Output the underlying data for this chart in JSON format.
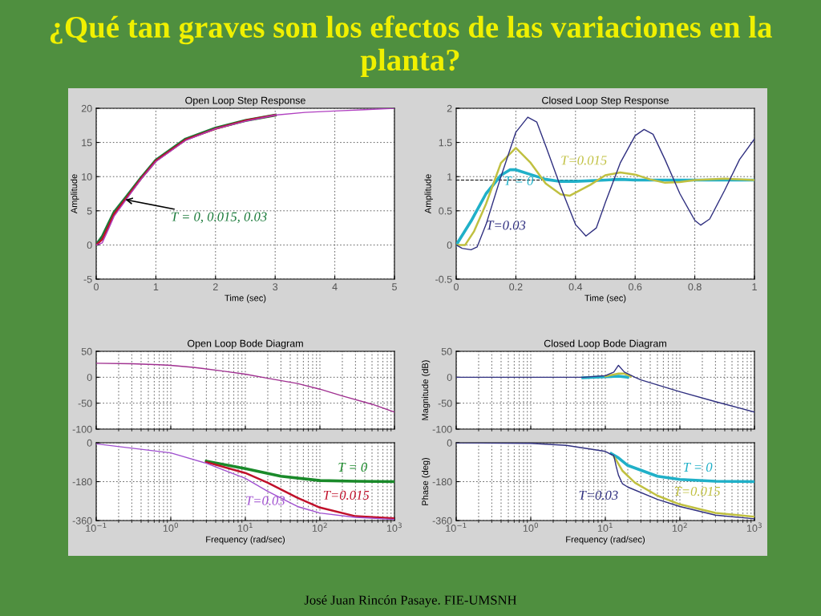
{
  "chart_data": [
    {
      "type": "line",
      "title": "Open Loop Step Response",
      "xlabel": "Time (sec)",
      "ylabel": "Amplitude",
      "xlim": [
        0,
        5
      ],
      "ylim": [
        -5,
        20
      ],
      "xticks": [
        0,
        1,
        2,
        3,
        4,
        5
      ],
      "yticks": [
        -5,
        0,
        5,
        10,
        15,
        20
      ],
      "grid": true,
      "line_style": "solid",
      "series": [
        {
          "color": "#1a7a3a",
          "x": [
            0,
            0.1,
            0.2,
            0.3,
            0.5,
            0.75,
            1,
            1.5,
            2,
            2.5,
            3
          ],
          "values": [
            0,
            1.2,
            3,
            4.8,
            7,
            9.8,
            12.4,
            15.5,
            17.1,
            18.2,
            19
          ]
        },
        {
          "color": "#c0102a",
          "x": [
            0,
            0.1,
            0.2,
            0.3,
            0.5,
            0.75,
            1,
            1.5,
            2,
            2.5,
            3
          ],
          "values": [
            0,
            0.8,
            2.6,
            4.5,
            6.8,
            9.7,
            12.3,
            15.4,
            17,
            18.2,
            19
          ]
        },
        {
          "color": "#b040c0",
          "x": [
            0,
            0.1,
            0.2,
            0.3,
            0.5,
            0.75,
            1,
            1.5,
            2,
            2.5,
            3,
            3.5,
            4,
            4.5,
            5
          ],
          "values": [
            0,
            0.3,
            2.2,
            4.2,
            6.6,
            9.6,
            12.2,
            15.3,
            17,
            18.1,
            19,
            19.4,
            19.6,
            19.8,
            20
          ]
        }
      ],
      "annotations": [
        {
          "text": "T = 0, 0.015, 0.03",
          "x": 0.45,
          "y": 6.7
        },
        "¿Qué tan graves son los efectos de las variaciones en la planta?",
        "José Juan Rincón Pasaye. FIE-UMSNH"
      ]
    },
    {
      "type": "line",
      "title": "Closed Loop Step Response",
      "xlabel": "Time (sec)",
      "ylabel": "Amplitude",
      "xlim": [
        0,
        1
      ],
      "ylim": [
        -0.5,
        2
      ],
      "xticks": [
        0,
        0.2,
        0.4,
        0.6,
        0.8,
        1
      ],
      "yticks": [
        -0.5,
        0,
        0.5,
        1,
        1.5,
        2
      ],
      "grid": true,
      "line_style": "solid",
      "ref_lines": [
        {
          "axis": "y",
          "value": 0.95,
          "color": "#000000",
          "line_style": "dashed"
        }
      ],
      "series": [
        {
          "name": "T = 0",
          "color": "#20b0c8",
          "x": [
            0,
            0.05,
            0.1,
            0.15,
            0.18,
            0.2,
            0.25,
            0.3,
            0.35,
            0.4,
            0.5,
            0.55,
            0.6,
            1
          ],
          "values": [
            0,
            0.35,
            0.75,
            1.02,
            1.1,
            1.1,
            1.03,
            0.96,
            0.93,
            0.93,
            0.95,
            0.96,
            0.95,
            0.95
          ]
        },
        {
          "name": "T=0.015",
          "color": "#c0c040",
          "x": [
            0,
            0.03,
            0.06,
            0.1,
            0.15,
            0.2,
            0.25,
            0.3,
            0.35,
            0.38,
            0.45,
            0.5,
            0.55,
            0.6,
            0.65,
            0.7,
            0.75,
            0.8,
            0.9,
            1
          ],
          "values": [
            0,
            0,
            0.2,
            0.6,
            1.2,
            1.42,
            1.2,
            0.9,
            0.74,
            0.72,
            0.88,
            1.02,
            1.06,
            1.03,
            0.96,
            0.91,
            0.92,
            0.95,
            0.97,
            0.95
          ]
        },
        {
          "name": "T=0.03",
          "color": "#303080",
          "x": [
            0,
            0.02,
            0.05,
            0.07,
            0.1,
            0.15,
            0.2,
            0.24,
            0.27,
            0.3,
            0.35,
            0.4,
            0.435,
            0.47,
            0.5,
            0.55,
            0.6,
            0.63,
            0.66,
            0.7,
            0.75,
            0.8,
            0.82,
            0.85,
            0.9,
            0.95,
            1
          ],
          "values": [
            0,
            -0.05,
            -0.07,
            -0.03,
            0.3,
            1.0,
            1.65,
            1.87,
            1.8,
            1.45,
            0.85,
            0.3,
            0.13,
            0.25,
            0.62,
            1.2,
            1.6,
            1.69,
            1.62,
            1.25,
            0.75,
            0.36,
            0.29,
            0.38,
            0.8,
            1.25,
            1.55
          ]
        }
      ]
    },
    {
      "type": "line",
      "title": "Open Loop Bode Diagram",
      "log": "x",
      "xlim": [
        0.1,
        1000
      ],
      "ylim": [
        -100,
        50
      ],
      "yticks": [
        -100,
        -50,
        0,
        50
      ],
      "tick_labels": "y",
      "grid": true,
      "line_style": "solid",
      "series": [
        {
          "color": "#a03090",
          "x": [
            0.1,
            0.3,
            0.7,
            1,
            2,
            3,
            5,
            10,
            20,
            50,
            100,
            200,
            500,
            1000
          ],
          "values": [
            27,
            26,
            24,
            23,
            19,
            16,
            12,
            6,
            -2,
            -12,
            -23,
            -36,
            -52,
            -67
          ]
        }
      ]
    },
    {
      "type": "line",
      "xlabel": "Frequency (rad/sec)",
      "log": "x",
      "xlim": [
        0.1,
        1000
      ],
      "ylim": [
        -360,
        0
      ],
      "yticks": [
        -360,
        -180,
        0
      ],
      "xticks": [
        {
          "value": 0.1,
          "label": "10$^{−1}$"
        },
        {
          "value": 1,
          "label": "10$^{0}$"
        },
        {
          "value": 10,
          "label": "10$^{1}$"
        },
        {
          "value": 100,
          "label": "10$^{2}$"
        },
        {
          "value": 1000,
          "label": "10$^{3}$"
        }
      ],
      "grid": true,
      "line_style": "solid",
      "series": [
        {
          "name": "T = 0",
          "color": "#1a8a2a",
          "x": [
            3,
            10,
            30,
            100,
            300,
            1000
          ],
          "values": [
            -85,
            -120,
            -155,
            -175,
            -178,
            -180
          ]
        },
        {
          "name": "T=0.015",
          "color": "#c0102a",
          "x": [
            3,
            10,
            20,
            50,
            100,
            300,
            1000
          ],
          "values": [
            -90,
            -140,
            -185,
            -255,
            -300,
            -340,
            -350
          ]
        },
        {
          "name": "T=0.03",
          "color": "#a050d0",
          "x": [
            0.1,
            1,
            3,
            10,
            20,
            50,
            100,
            300,
            1000
          ],
          "values": [
            -5,
            -47,
            -95,
            -165,
            -225,
            -295,
            -325,
            -345,
            -355
          ]
        }
      ]
    },
    {
      "type": "line",
      "title": "Closed Loop Bode Diagram",
      "ylabel": "Magnitude (dB)",
      "log": "x",
      "xlim": [
        0.1,
        1000
      ],
      "ylim": [
        -100,
        50
      ],
      "yticks": [
        -100,
        -50,
        0,
        50
      ],
      "tick_labels": "y",
      "grid": true,
      "line_style": "solid",
      "series": [
        {
          "color": "#20b0c8",
          "x": [
            5,
            10,
            15,
            20
          ],
          "values": [
            -1,
            1,
            2,
            0
          ]
        },
        {
          "color": "#c0c040",
          "x": [
            10,
            15,
            18,
            22
          ],
          "values": [
            2,
            7,
            7,
            2
          ]
        },
        {
          "color": "#303080",
          "x": [
            0.1,
            5,
            10,
            13,
            15,
            18,
            25,
            30,
            100,
            300,
            1000
          ],
          "values": [
            0,
            0,
            3,
            10,
            23,
            10,
            0,
            -5,
            -28,
            -47,
            -67
          ]
        }
      ]
    },
    {
      "type": "line",
      "xlabel": "Frequency (rad/sec)",
      "ylabel": "Phase (deg)",
      "log": "x",
      "xlim": [
        0.1,
        1000
      ],
      "ylim": [
        -360,
        0
      ],
      "yticks": [
        -360,
        -180,
        0
      ],
      "xticks": [
        {
          "value": 0.1,
          "label": "10$^{−1}$"
        },
        {
          "value": 1,
          "label": "10$^{0}$"
        },
        {
          "value": 10,
          "label": "10$^{1}$"
        },
        {
          "value": 100,
          "label": "10$^{2}$"
        },
        {
          "value": 1000,
          "label": "10$^{3}$"
        }
      ],
      "grid": true,
      "line_style": "solid",
      "series": [
        {
          "name": "T = 0",
          "color": "#20b0c8",
          "x": [
            12,
            15,
            20,
            50,
            100,
            300,
            1000
          ],
          "values": [
            -50,
            -70,
            -105,
            -155,
            -170,
            -178,
            -180
          ]
        },
        {
          "name": "T=0.015",
          "color": "#c0c040",
          "x": [
            13,
            14,
            17,
            25,
            50,
            100,
            300,
            1000
          ],
          "values": [
            -65,
            -80,
            -130,
            -185,
            -245,
            -285,
            -325,
            -342
          ]
        },
        {
          "name": "T=0.03",
          "color": "#303080",
          "x": [
            0.1,
            1,
            3,
            10,
            13,
            14,
            15,
            17,
            20,
            50,
            100,
            300,
            1000
          ],
          "values": [
            0,
            -3,
            -12,
            -40,
            -60,
            -110,
            -150,
            -190,
            -205,
            -262,
            -295,
            -335,
            -352
          ]
        }
      ]
    }
  ]
}
